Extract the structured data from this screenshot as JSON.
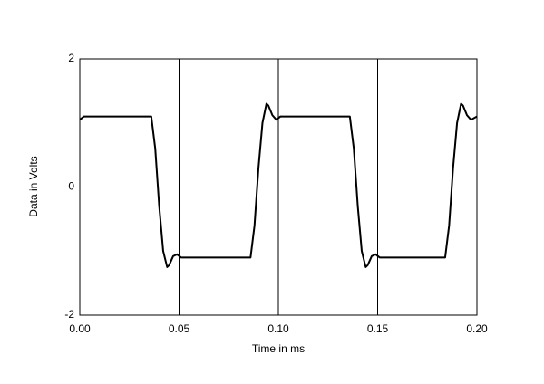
{
  "chart_data": {
    "type": "line",
    "x_label": "Time in ms",
    "y_label": "Data in Volts",
    "x": [
      0.0,
      0.002,
      0.036,
      0.038,
      0.04,
      0.042,
      0.044,
      0.045,
      0.047,
      0.049,
      0.051,
      0.086,
      0.088,
      0.09,
      0.092,
      0.094,
      0.095,
      0.097,
      0.099,
      0.101,
      0.136,
      0.138,
      0.14,
      0.142,
      0.144,
      0.145,
      0.147,
      0.149,
      0.151,
      0.184,
      0.186,
      0.188,
      0.19,
      0.192,
      0.193,
      0.195,
      0.197,
      0.2
    ],
    "values": [
      1.05,
      1.1,
      1.1,
      0.6,
      -0.3,
      -1.0,
      -1.25,
      -1.22,
      -1.08,
      -1.05,
      -1.1,
      -1.1,
      -0.6,
      0.3,
      1.0,
      1.3,
      1.27,
      1.12,
      1.05,
      1.1,
      1.1,
      0.6,
      -0.3,
      -1.0,
      -1.25,
      -1.22,
      -1.08,
      -1.05,
      -1.1,
      -1.1,
      -0.6,
      0.3,
      1.0,
      1.3,
      1.27,
      1.12,
      1.05,
      1.1
    ],
    "color": "#000000",
    "xlim": [
      0,
      0.2
    ],
    "ylim": [
      -2,
      2
    ],
    "xticks": [
      {
        "value": 0,
        "label": "0.00"
      },
      {
        "value": 0.05,
        "label": "0.05"
      },
      {
        "value": 0.1,
        "label": "0.10"
      },
      {
        "value": 0.15,
        "label": "0.15"
      },
      {
        "value": 0.2,
        "label": "0.20"
      }
    ],
    "yticks": [
      -2,
      0,
      2
    ],
    "grid": true
  }
}
